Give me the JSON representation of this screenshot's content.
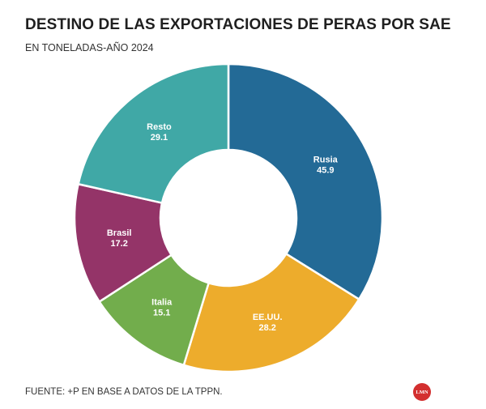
{
  "header": {
    "title": "DESTINO DE LAS EXPORTACIONES DE PERAS POR SAE",
    "subtitle": "EN TONELADAS-AÑO 2024"
  },
  "footer": {
    "source": "FUENTE: +P EN BASE A DATOS DE LA TPPN.",
    "logo_text": "LMN"
  },
  "chart_data": {
    "type": "pie",
    "donut": true,
    "categories": [
      "Rusia",
      "EE.UU.",
      "Italia",
      "Brasil",
      "Resto"
    ],
    "values": [
      45.9,
      28.2,
      15.1,
      17.2,
      29.1
    ],
    "value_labels": [
      "45.9",
      "28.2",
      "15.1",
      "17.2",
      "29.1"
    ],
    "colors": [
      "#236a96",
      "#edac2c",
      "#72ad4c",
      "#943468",
      "#40a8a6"
    ]
  }
}
